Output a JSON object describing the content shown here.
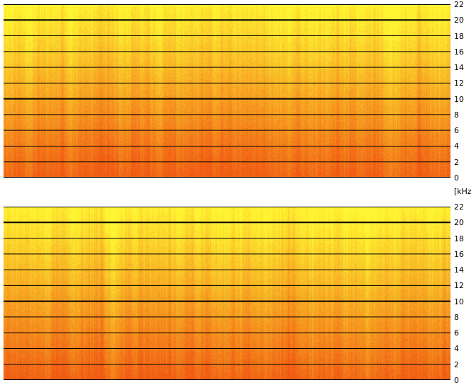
{
  "chart_data": {
    "type": "heatmap",
    "unit": "[kHz]",
    "y_axis": {
      "range": [
        0,
        22
      ],
      "ticks": [
        0,
        2,
        4,
        6,
        8,
        10,
        12,
        14,
        16,
        18,
        20,
        22
      ],
      "tick_labels": [
        "0",
        "2",
        "4",
        "6",
        "8",
        "10",
        "12",
        "14",
        "16",
        "18",
        "20",
        "22"
      ],
      "emphasized_gridlines": [
        10,
        20
      ]
    },
    "grid": true,
    "colors": {
      "high": "#ffff30",
      "mid": "#ffb000",
      "low": "#f06a10",
      "gridline": "#000000"
    },
    "panels": [
      {
        "id": "top",
        "description": "yellow at high frequencies fading to orange at low frequencies"
      },
      {
        "id": "bottom",
        "description": "yellow at high frequencies fading to orange at low frequencies"
      }
    ]
  }
}
